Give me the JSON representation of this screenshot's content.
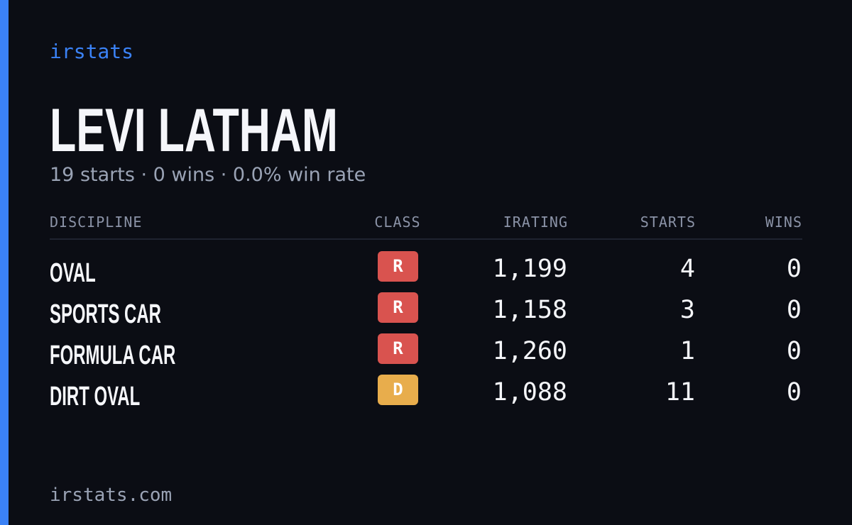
{
  "brand": "irstats",
  "header": {
    "title": "LEVI LATHAM",
    "subtitle": "19 starts · 0 wins · 0.0% win rate"
  },
  "table": {
    "columns": [
      "DISCIPLINE",
      "CLASS",
      "IRATING",
      "STARTS",
      "WINS"
    ],
    "rows": [
      {
        "discipline": "OVAL",
        "class": "R",
        "class_color": "#d9534f",
        "irating": "1,199",
        "starts": "4",
        "wins": "0"
      },
      {
        "discipline": "SPORTS CAR",
        "class": "R",
        "class_color": "#d9534f",
        "irating": "1,158",
        "starts": "3",
        "wins": "0"
      },
      {
        "discipline": "FORMULA CAR",
        "class": "R",
        "class_color": "#d9534f",
        "irating": "1,260",
        "starts": "1",
        "wins": "0"
      },
      {
        "discipline": "DIRT OVAL",
        "class": "D",
        "class_color": "#e8ad4c",
        "irating": "1,088",
        "starts": "11",
        "wins": "0"
      }
    ]
  },
  "footer": "irstats.com"
}
